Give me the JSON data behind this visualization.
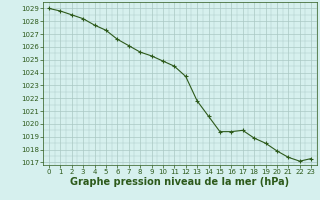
{
  "x": [
    0,
    1,
    2,
    3,
    4,
    5,
    6,
    7,
    8,
    9,
    10,
    11,
    12,
    13,
    14,
    15,
    16,
    17,
    18,
    19,
    20,
    21,
    22,
    23
  ],
  "y": [
    1029.0,
    1028.8,
    1028.5,
    1028.2,
    1027.7,
    1027.3,
    1026.6,
    1026.1,
    1025.6,
    1025.3,
    1024.9,
    1024.5,
    1023.7,
    1021.8,
    1020.6,
    1019.4,
    1019.4,
    1019.5,
    1018.9,
    1018.5,
    1017.9,
    1017.4,
    1017.1,
    1017.3
  ],
  "xlim": [
    -0.5,
    23.5
  ],
  "ylim": [
    1016.8,
    1029.5
  ],
  "yticks": [
    1017,
    1018,
    1019,
    1020,
    1021,
    1022,
    1023,
    1024,
    1025,
    1026,
    1027,
    1028,
    1029
  ],
  "xticks": [
    0,
    1,
    2,
    3,
    4,
    5,
    6,
    7,
    8,
    9,
    10,
    11,
    12,
    13,
    14,
    15,
    16,
    17,
    18,
    19,
    20,
    21,
    22,
    23
  ],
  "xlabel": "Graphe pression niveau de la mer (hPa)",
  "line_color": "#2d5a1b",
  "marker": "+",
  "marker_size": 3.5,
  "line_width": 0.8,
  "bg_color": "#d6f0ee",
  "grid_color": "#aac8c4",
  "tick_label_fontsize": 5.0,
  "xlabel_fontsize": 7.0,
  "xlabel_fontweight": "bold"
}
